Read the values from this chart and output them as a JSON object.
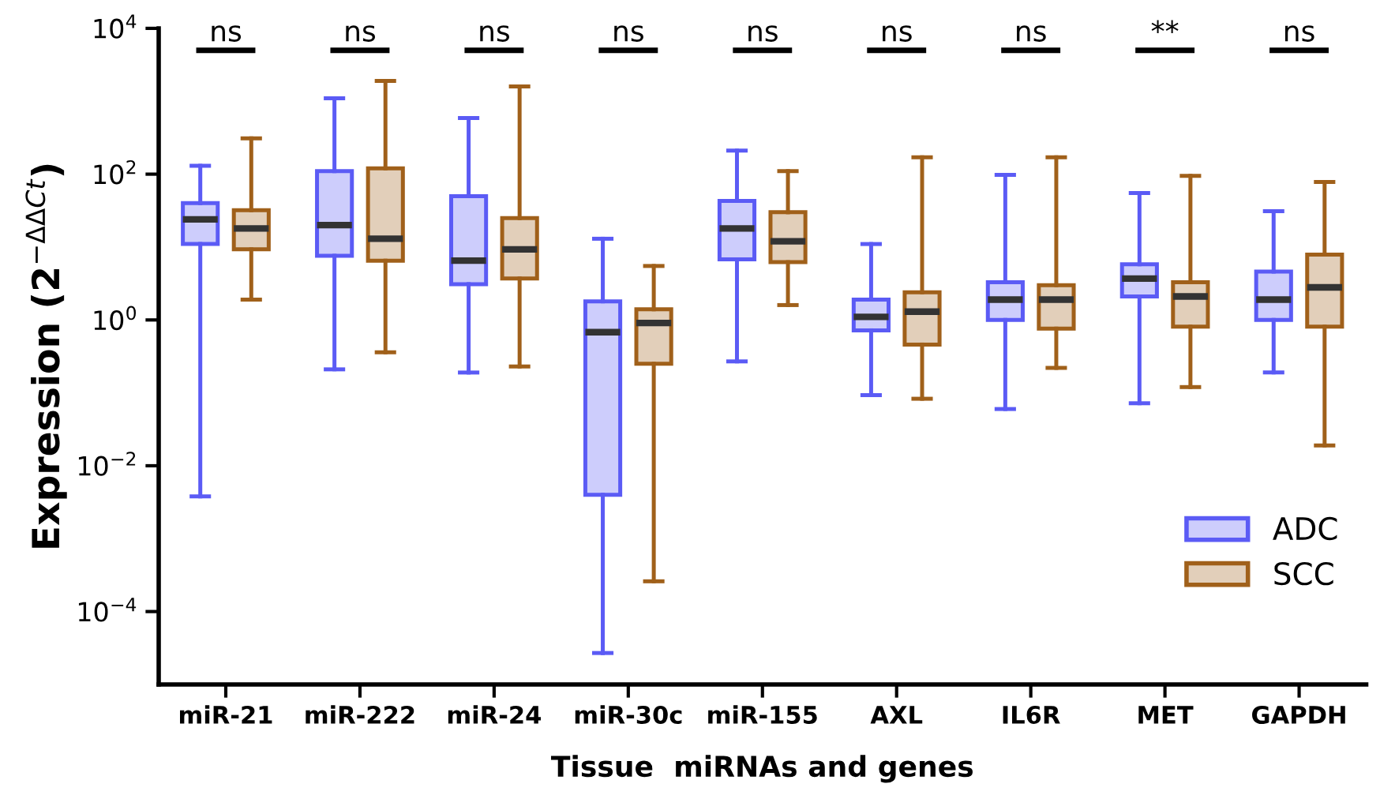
{
  "chart_data": {
    "type": "box",
    "xlabel": "Tissue  miRNAs and genes",
    "ylabel": "Expression (2$^{−ΔΔCt}$)",
    "categories": [
      "miR-21",
      "miR-222",
      "miR-24",
      "miR-30c",
      "miR-155",
      "AXL",
      "IL6R",
      "MET",
      "GAPDH"
    ],
    "log": true,
    "ylim": [
      1e-05,
      10000
    ],
    "yticks": [
      {
        "value": 0.0001,
        "label": "10$^{−4}$"
      },
      {
        "value": 0.01,
        "label": "10$^{−2}$"
      },
      {
        "value": 1,
        "label": "10$^{0}$"
      },
      {
        "value": 100,
        "label": "10$^{2}$"
      },
      {
        "value": 10000,
        "label": "10$^{4}$"
      }
    ],
    "grid": false,
    "legend": "bottom right",
    "annotations": [
      "ns",
      "ns",
      "ns",
      "ns",
      "ns",
      "ns",
      "ns",
      "**",
      "ns"
    ],
    "series": [
      {
        "name": "ADC",
        "color": "#5b5bf5",
        "boxes": [
          {
            "low": 0.0038,
            "q1": 11,
            "median": 24,
            "q3": 40,
            "high": 130
          },
          {
            "low": 0.21,
            "q1": 7.6,
            "median": 20,
            "q3": 110,
            "high": 1100
          },
          {
            "low": 0.19,
            "q1": 3.1,
            "median": 6.5,
            "q3": 50,
            "high": 590
          },
          {
            "low": 2.7e-05,
            "q1": 0.004,
            "median": 0.68,
            "q3": 1.8,
            "high": 13
          },
          {
            "low": 0.27,
            "q1": 6.8,
            "median": 18,
            "q3": 43,
            "high": 210
          },
          {
            "low": 0.093,
            "q1": 0.72,
            "median": 1.1,
            "q3": 1.9,
            "high": 11
          },
          {
            "low": 0.06,
            "q1": 1.0,
            "median": 1.9,
            "q3": 3.3,
            "high": 98
          },
          {
            "low": 0.072,
            "q1": 2.1,
            "median": 3.7,
            "q3": 5.8,
            "high": 55
          },
          {
            "low": 0.19,
            "q1": 1.0,
            "median": 1.9,
            "q3": 4.6,
            "high": 31
          }
        ]
      },
      {
        "name": "SCC",
        "color": "#a0601a",
        "boxes": [
          {
            "low": 1.9,
            "q1": 9.3,
            "median": 18,
            "q3": 32,
            "high": 310
          },
          {
            "low": 0.36,
            "q1": 6.5,
            "median": 13,
            "q3": 120,
            "high": 1900
          },
          {
            "low": 0.23,
            "q1": 3.7,
            "median": 9.3,
            "q3": 25,
            "high": 1600
          },
          {
            "low": 0.00026,
            "q1": 0.25,
            "median": 0.91,
            "q3": 1.4,
            "high": 5.5
          },
          {
            "low": 1.6,
            "q1": 6.2,
            "median": 12,
            "q3": 30,
            "high": 110
          },
          {
            "low": 0.083,
            "q1": 0.46,
            "median": 1.3,
            "q3": 2.4,
            "high": 170
          },
          {
            "low": 0.22,
            "q1": 0.76,
            "median": 1.9,
            "q3": 3.0,
            "high": 170
          },
          {
            "low": 0.12,
            "q1": 0.81,
            "median": 2.1,
            "q3": 3.3,
            "high": 95
          },
          {
            "low": 0.019,
            "q1": 0.81,
            "median": 2.8,
            "q3": 7.9,
            "high": 78
          }
        ]
      }
    ]
  }
}
